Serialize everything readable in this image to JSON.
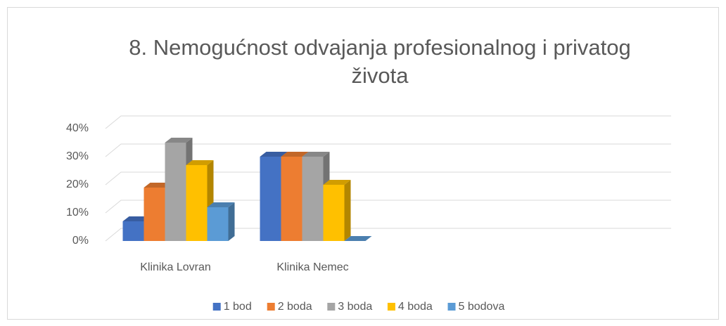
{
  "chart_data": {
    "type": "bar3d",
    "title": "8. Nemogućnost odvajanja profesionalnog i privatog života",
    "categories": [
      "Klinika Lovran",
      "Klinika Nemec",
      null,
      null
    ],
    "series": [
      {
        "name": "1 bod",
        "color": "#4472c4",
        "values": [
          7,
          30,
          null,
          null
        ]
      },
      {
        "name": "2 boda",
        "color": "#ed7d31",
        "values": [
          19,
          30,
          null,
          null
        ]
      },
      {
        "name": "3 boda",
        "color": "#a5a5a5",
        "values": [
          35,
          30,
          null,
          null
        ]
      },
      {
        "name": "4 boda",
        "color": "#ffc000",
        "values": [
          27,
          20,
          null,
          null
        ]
      },
      {
        "name": "5 bodova",
        "color": "#5b9bd5",
        "values": [
          12,
          0,
          null,
          null
        ]
      }
    ],
    "ylim": [
      0,
      40
    ],
    "yticks": [
      {
        "value": 0,
        "label": "0%"
      },
      {
        "value": 10,
        "label": "10%"
      },
      {
        "value": 20,
        "label": "20%"
      },
      {
        "value": 30,
        "label": "30%"
      },
      {
        "value": 40,
        "label": "40%"
      }
    ],
    "grid": true,
    "legend": "bottom"
  }
}
